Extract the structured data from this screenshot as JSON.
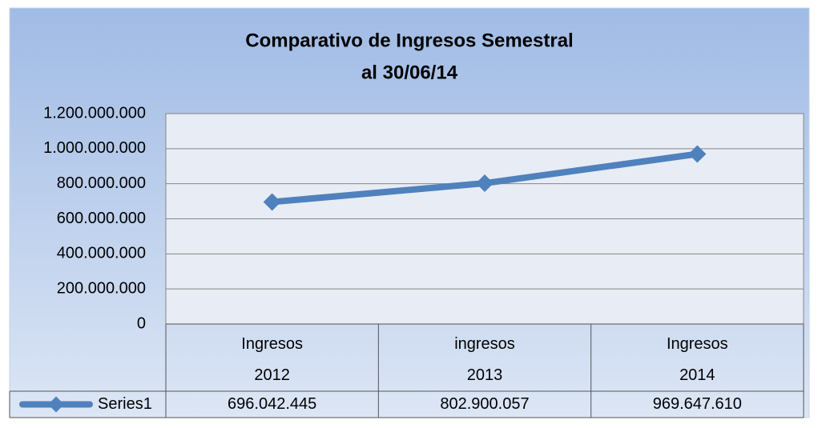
{
  "chart_data": {
    "type": "line",
    "title": "Comparativo de Ingresos Semestral",
    "subtitle": "al 30/06/14",
    "categories": [
      "Ingresos 2012",
      "ingresos 2013",
      "Ingresos 2014"
    ],
    "series": [
      {
        "name": "Series1",
        "color": "#4f81bd",
        "values": [
          696042445,
          802900057,
          969647610
        ],
        "value_labels": [
          "696.042.445",
          "802.900.057",
          "969.647.610"
        ]
      }
    ],
    "ylim": [
      0,
      1200000000
    ],
    "yticks": [
      0,
      {
        "value": 200000000,
        "label": "200.000.000"
      },
      {
        "value": 400000000,
        "label": "400.000.000"
      },
      {
        "value": 600000000,
        "label": "600.000.000"
      },
      {
        "value": 800000000,
        "label": "800.000.000"
      },
      {
        "value": 1000000000,
        "label": "1.000.000.000"
      },
      {
        "value": 1200000000,
        "label": "1.200.000.000"
      }
    ],
    "grid": true,
    "data_table": true
  }
}
